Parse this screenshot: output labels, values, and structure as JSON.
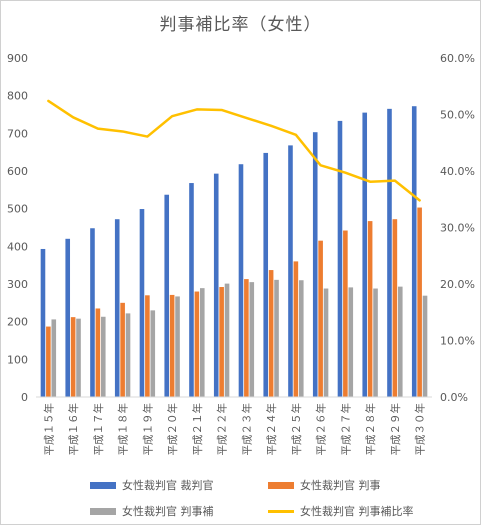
{
  "chart_data": {
    "type": "bar",
    "title": "判事補比率（女性）",
    "categories": [
      "平成１５年",
      "平成１６年",
      "平成１７年",
      "平成１８年",
      "平成１９年",
      "平成２０年",
      "平成２１年",
      "平成２２年",
      "平成２３年",
      "平成２４年",
      "平成２５年",
      "平成２６年",
      "平成２７年",
      "平成２８年",
      "平成２９年",
      "平成３０年"
    ],
    "series": [
      {
        "name": "女性裁判官 裁判官",
        "type": "bar",
        "axis": "left",
        "color": "#4472C4",
        "values": [
          393,
          420,
          448,
          472,
          499,
          537,
          568,
          593,
          618,
          648,
          668,
          703,
          733,
          755,
          765,
          772
        ]
      },
      {
        "name": "女性裁判官 判事",
        "type": "bar",
        "axis": "left",
        "color": "#ED7D31",
        "values": [
          187,
          212,
          235,
          250,
          270,
          271,
          280,
          292,
          313,
          337,
          360,
          415,
          442,
          467,
          472,
          503
        ]
      },
      {
        "name": "女性裁判官 判事補",
        "type": "bar",
        "axis": "left",
        "color": "#A5A5A5",
        "values": [
          206,
          208,
          213,
          222,
          230,
          267,
          289,
          301,
          305,
          311,
          310,
          288,
          291,
          288,
          293,
          269
        ]
      },
      {
        "name": "女性裁判官 判事補比率",
        "type": "line",
        "axis": "right",
        "color": "#FFC000",
        "values": [
          52.4,
          49.5,
          47.5,
          47.0,
          46.1,
          49.7,
          50.9,
          50.8,
          49.4,
          48.0,
          46.4,
          41.0,
          39.7,
          38.1,
          38.3,
          34.8
        ]
      }
    ],
    "y_left": {
      "min": 0,
      "max": 900,
      "ticks": [
        "0",
        "100",
        "200",
        "300",
        "400",
        "500",
        "600",
        "700",
        "800",
        "900"
      ]
    },
    "y_right": {
      "min": 0,
      "max": 60,
      "ticks": [
        "0.0%",
        "10.0%",
        "20.0%",
        "30.0%",
        "40.0%",
        "50.0%",
        "60.0%"
      ]
    },
    "grid": false,
    "legend_position": "bottom"
  }
}
